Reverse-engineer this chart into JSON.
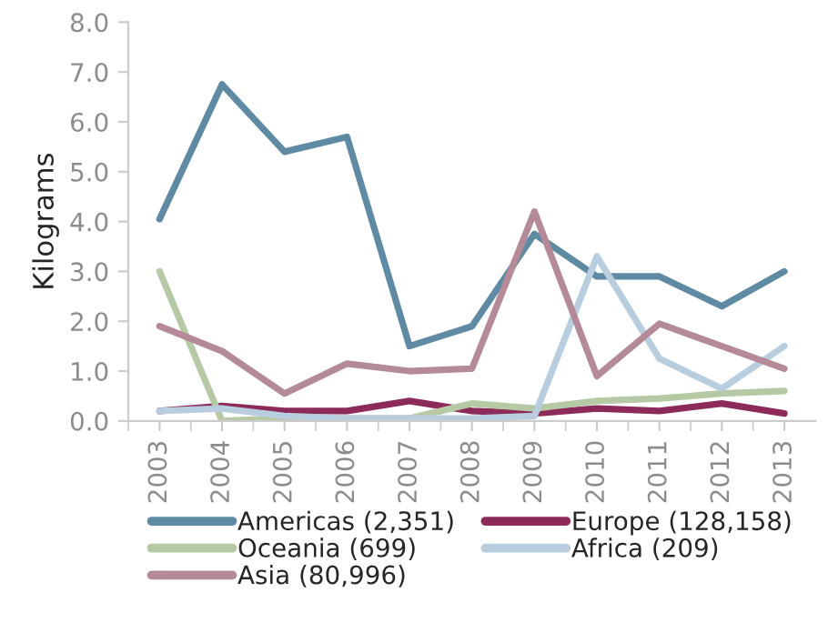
{
  "chart_data": {
    "type": "line",
    "ylabel": "Kilograms",
    "categories": [
      "2003",
      "2004",
      "2005",
      "2006",
      "2007",
      "2008",
      "2009",
      "2010",
      "2011",
      "2012",
      "2013"
    ],
    "series": [
      {
        "name": "Americas (2,351)",
        "color": "#5f8aa3",
        "values": [
          4.05,
          6.75,
          5.4,
          5.7,
          1.5,
          1.9,
          3.75,
          2.9,
          2.9,
          2.3,
          3.0
        ]
      },
      {
        "name": "Europe (128,158)",
        "color": "#8c2a5a",
        "values": [
          0.2,
          0.3,
          0.2,
          0.2,
          0.4,
          0.2,
          0.15,
          0.25,
          0.2,
          0.35,
          0.15
        ]
      },
      {
        "name": "Oceania (699)",
        "color": "#b5c9a5",
        "values": [
          3.0,
          0.0,
          0.05,
          0.05,
          0.05,
          0.35,
          0.25,
          0.4,
          0.45,
          0.55,
          0.6
        ]
      },
      {
        "name": "Africa (209)",
        "color": "#b8cede",
        "values": [
          0.2,
          0.25,
          0.1,
          0.05,
          0.05,
          0.05,
          0.1,
          3.3,
          1.25,
          0.65,
          1.5
        ]
      },
      {
        "name": "Asia (80,996)",
        "color": "#b48a98",
        "values": [
          1.9,
          1.4,
          0.55,
          1.15,
          1.0,
          1.05,
          4.2,
          0.9,
          1.95,
          1.5,
          1.05
        ]
      }
    ],
    "ylim": [
      0,
      8
    ],
    "yticks": [
      {
        "value": 0,
        "label": "0.0"
      },
      {
        "value": 1,
        "label": "1.0"
      },
      {
        "value": 2,
        "label": "2.0"
      },
      {
        "value": 3,
        "label": "3.0"
      },
      {
        "value": 4,
        "label": "4.0"
      },
      {
        "value": 5,
        "label": "5.0"
      },
      {
        "value": 6,
        "label": "6.0"
      },
      {
        "value": 7,
        "label": "7.0"
      },
      {
        "value": 8,
        "label": "8.0"
      }
    ],
    "grid": false,
    "legend": "bottom",
    "marker": "none",
    "line_style": "solid"
  }
}
